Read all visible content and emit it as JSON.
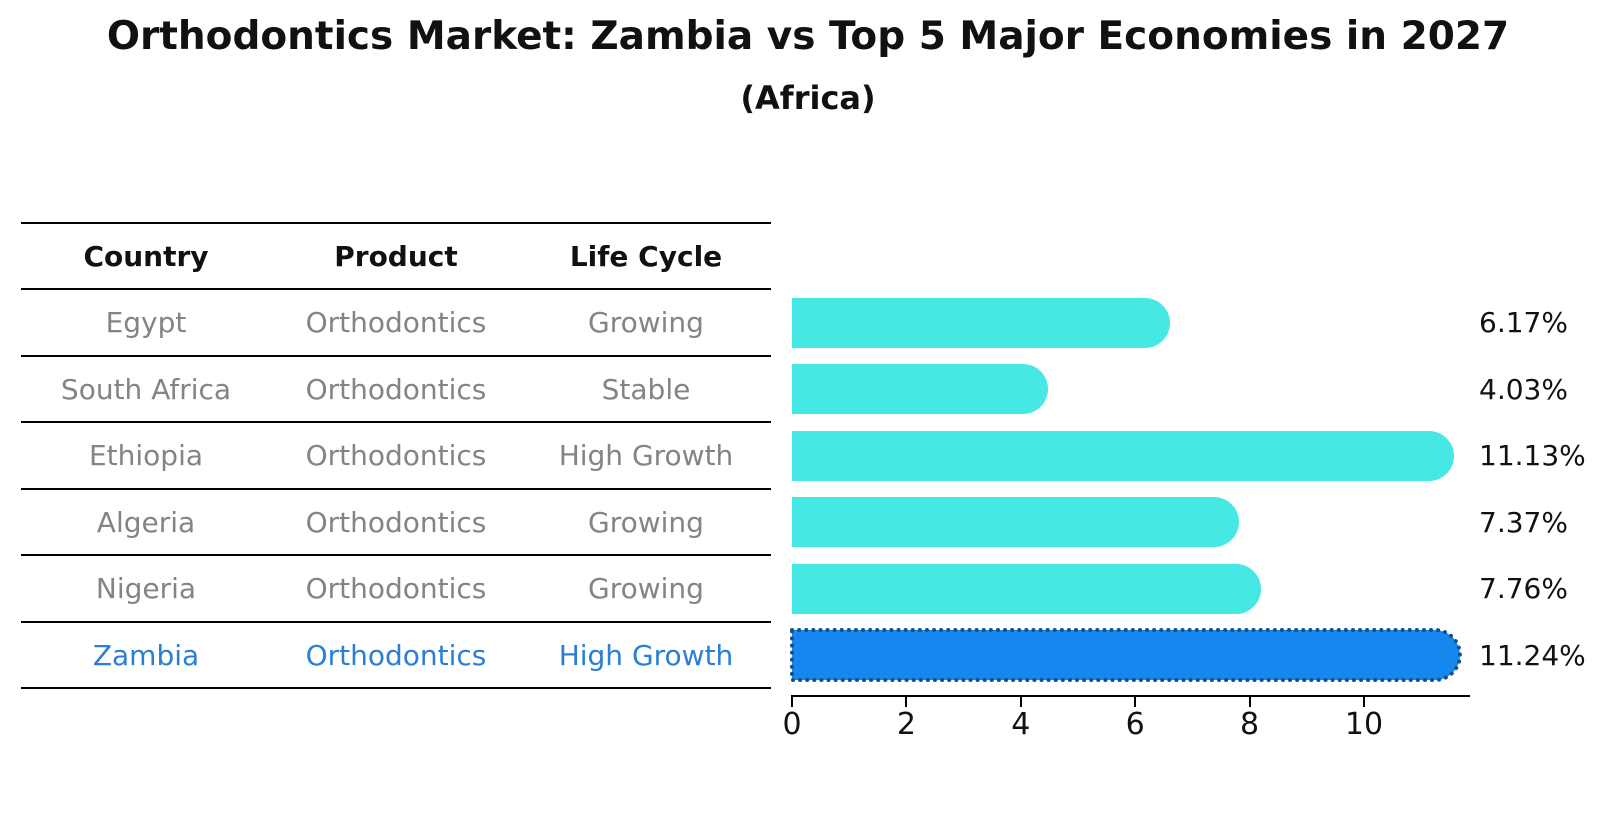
{
  "header": {
    "title": "Orthodontics Market: Zambia vs Top 5 Major Economies in 2027",
    "subtitle": "(Africa)"
  },
  "table": {
    "columns": [
      "Country",
      "Product",
      "Life Cycle"
    ],
    "rows": [
      {
        "country": "Egypt",
        "product": "Orthodontics",
        "life_cycle": "Growing"
      },
      {
        "country": "South Africa",
        "product": "Orthodontics",
        "life_cycle": "Stable"
      },
      {
        "country": "Ethiopia",
        "product": "Orthodontics",
        "life_cycle": "High Growth"
      },
      {
        "country": "Algeria",
        "product": "Orthodontics",
        "life_cycle": "Growing"
      },
      {
        "country": "Nigeria",
        "product": "Orthodontics",
        "life_cycle": "Growing"
      },
      {
        "country": "Zambia",
        "product": "Orthodontics",
        "life_cycle": "High Growth"
      }
    ],
    "highlight_row": "Zambia"
  },
  "chart_data": {
    "type": "bar",
    "orientation": "horizontal",
    "categories": [
      "Egypt",
      "South Africa",
      "Ethiopia",
      "Algeria",
      "Nigeria",
      "Zambia"
    ],
    "values": [
      6.17,
      4.03,
      11.13,
      7.37,
      7.76,
      11.24
    ],
    "value_labels": [
      "6.17%",
      "4.03%",
      "11.13%",
      "7.37%",
      "7.76%",
      "11.24%"
    ],
    "title": "Orthodontics Market: Zambia vs Top 5 Major Economies in 2027",
    "subtitle": "(Africa)",
    "xlabel": "",
    "ylabel": "",
    "xlim": [
      0,
      11.85
    ],
    "x_ticks": [
      0,
      2,
      4,
      6,
      8,
      10
    ],
    "grid": false,
    "legend": false,
    "highlight_category": "Zambia"
  },
  "colors": {
    "bar_fill": "#45e8e2",
    "highlight_fill": "#1787f0",
    "highlight_edge": "#11518e",
    "highlight_text": "#2a7fd4",
    "table_text": "#848484",
    "heading_text": "#111111",
    "line": "#000000"
  }
}
